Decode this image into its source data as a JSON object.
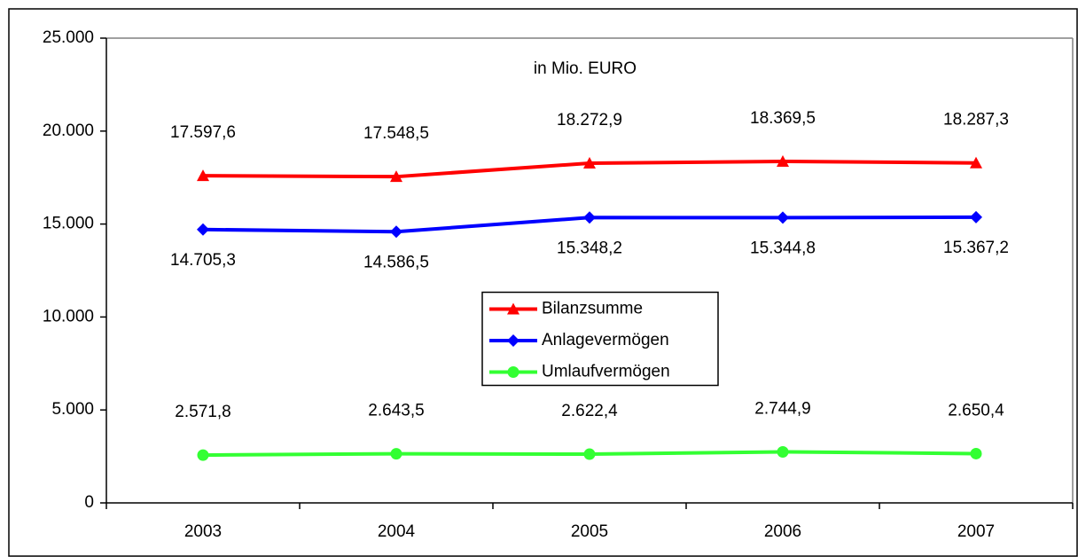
{
  "chart_data": {
    "type": "line",
    "annotation": "in Mio. EURO",
    "categories": [
      "2003",
      "2004",
      "2005",
      "2006",
      "2007"
    ],
    "series": [
      {
        "name": "Bilanzsumme",
        "color": "#ff0000",
        "marker": "triangle",
        "label_side": "above",
        "values": [
          17597.6,
          17548.5,
          18272.9,
          18369.5,
          18287.3
        ],
        "value_labels": [
          "17.597,6",
          "17.548,5",
          "18.272,9",
          "18.369,5",
          "18.287,3"
        ]
      },
      {
        "name": "Anlagevermögen",
        "color": "#0000ff",
        "marker": "diamond",
        "label_side": "below",
        "values": [
          14705.3,
          14586.5,
          15348.2,
          15344.8,
          15367.2
        ],
        "value_labels": [
          "14.705,3",
          "14.586,5",
          "15.348,2",
          "15.344,8",
          "15.367,2"
        ]
      },
      {
        "name": "Umlaufvermögen",
        "color": "#33ff33",
        "marker": "circle",
        "label_side": "above",
        "values": [
          2571.8,
          2643.5,
          2622.4,
          2744.9,
          2650.4
        ],
        "value_labels": [
          "2.571,8",
          "2.643,5",
          "2.622,4",
          "2.744,9",
          "2.650,4"
        ]
      }
    ],
    "ylim": [
      0,
      25000
    ],
    "yticks": [
      0,
      {
        "value": 5000,
        "label": "5.000"
      },
      {
        "value": 10000,
        "label": "10.000"
      },
      {
        "value": 15000,
        "label": "15.000"
      },
      {
        "value": 20000,
        "label": "20.000"
      },
      {
        "value": 25000,
        "label": "25.000"
      }
    ],
    "grid": false,
    "legend": "center"
  }
}
